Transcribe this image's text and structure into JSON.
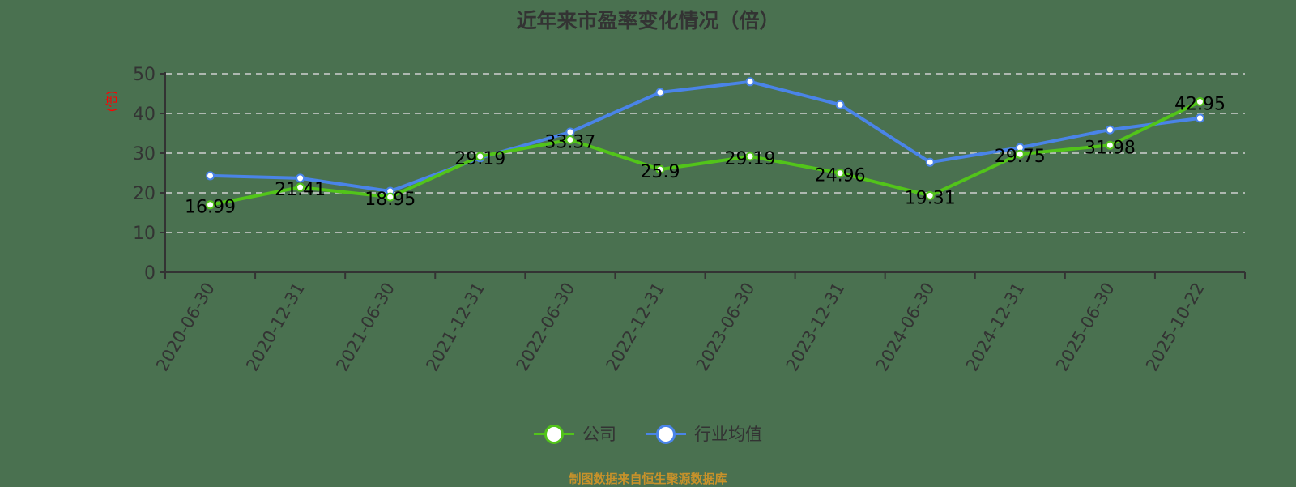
{
  "title": "近年来市盈率变化情况（倍）",
  "footer": "制图数据来自恒生聚源数据库",
  "colors": {
    "company": "#52c41a",
    "industry": "#4a84e8",
    "axis": "#333333",
    "grid": "#d0d0d0",
    "ylabel": "#ff0000",
    "footer": "#c8922a"
  },
  "legend": [
    {
      "label": "公司",
      "color": "#52c41a"
    },
    {
      "label": "行业均值",
      "color": "#4a84e8"
    }
  ],
  "chart_data": {
    "type": "line",
    "title": "近年来市盈率变化情况（倍）",
    "xlabel": "",
    "ylabel": "(倍)",
    "ylim": [
      0,
      50
    ],
    "yticks": [
      0,
      10,
      20,
      30,
      40,
      50
    ],
    "grid": true,
    "legend_position": "bottom",
    "categories": [
      "2020-06-30",
      "2020-12-31",
      "2021-06-30",
      "2021-12-31",
      "2022-06-30",
      "2022-12-31",
      "2023-06-30",
      "2023-12-31",
      "2024-06-30",
      "2024-12-31",
      "2025-06-30",
      "2025-10-22"
    ],
    "series": [
      {
        "name": "公司",
        "values": [
          16.99,
          21.41,
          18.95,
          29.19,
          33.37,
          25.9,
          29.19,
          24.96,
          19.31,
          29.75,
          31.98,
          42.95
        ],
        "labeled": true
      },
      {
        "name": "行业均值",
        "values": [
          24.3,
          23.7,
          20.4,
          28.8,
          35.3,
          45.3,
          48.0,
          42.2,
          27.7,
          31.4,
          35.9,
          38.8
        ],
        "labeled": false
      }
    ]
  }
}
